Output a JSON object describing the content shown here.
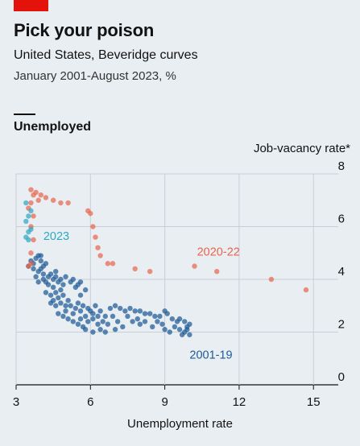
{
  "header": {
    "title": "Pick your poison",
    "subtitle": "United States, Beveridge curves",
    "dek": "January 2001-August 2023, %",
    "accent_color": "#e3120b"
  },
  "panel_label": "Unemployed",
  "chart_data": {
    "type": "scatter",
    "xlabel": "Unemployment rate",
    "ylabel": "Job-vacancy rate*",
    "xlim": [
      3,
      16
    ],
    "ylim": [
      0,
      8
    ],
    "xticks": [
      "3",
      "6",
      "9",
      "12",
      "15"
    ],
    "yticks": [
      "0",
      "2",
      "4",
      "6",
      "8"
    ],
    "y_axis_side": "right",
    "grid": "vertical",
    "series": [
      {
        "name": "2001-19",
        "color": "#1f5a96",
        "points": [
          [
            3.5,
            4.5
          ],
          [
            3.6,
            4.7
          ],
          [
            3.7,
            4.6
          ],
          [
            3.8,
            4.8
          ],
          [
            3.9,
            4.9
          ],
          [
            4.0,
            4.7
          ],
          [
            4.1,
            4.5
          ],
          [
            4.2,
            4.6
          ],
          [
            4.0,
            4.9
          ],
          [
            3.7,
            4.4
          ],
          [
            3.9,
            4.3
          ],
          [
            4.1,
            4.2
          ],
          [
            4.3,
            4.1
          ],
          [
            4.5,
            4.0
          ],
          [
            4.4,
            4.2
          ],
          [
            4.6,
            4.1
          ],
          [
            4.8,
            4.0
          ],
          [
            5.0,
            4.1
          ],
          [
            5.2,
            3.9
          ],
          [
            4.9,
            3.8
          ],
          [
            4.7,
            3.9
          ],
          [
            5.3,
            4.0
          ],
          [
            5.5,
            3.8
          ],
          [
            5.6,
            3.9
          ],
          [
            5.4,
            3.7
          ],
          [
            5.8,
            3.6
          ],
          [
            4.1,
            4.0
          ],
          [
            4.3,
            3.8
          ],
          [
            4.5,
            3.7
          ],
          [
            4.6,
            3.5
          ],
          [
            4.4,
            3.4
          ],
          [
            4.2,
            3.5
          ],
          [
            4.7,
            3.3
          ],
          [
            4.9,
            3.4
          ],
          [
            5.1,
            3.2
          ],
          [
            5.0,
            3.0
          ],
          [
            4.8,
            3.1
          ],
          [
            5.2,
            3.0
          ],
          [
            5.5,
            3.1
          ],
          [
            5.4,
            2.9
          ],
          [
            5.6,
            2.8
          ],
          [
            5.7,
            3.0
          ],
          [
            5.9,
            2.9
          ],
          [
            6.0,
            2.8
          ],
          [
            6.2,
            3.0
          ],
          [
            6.1,
            2.7
          ],
          [
            5.8,
            2.6
          ],
          [
            5.3,
            2.7
          ],
          [
            5.0,
            2.8
          ],
          [
            4.6,
            3.0
          ],
          [
            4.4,
            3.1
          ],
          [
            4.7,
            2.7
          ],
          [
            4.9,
            2.6
          ],
          [
            5.1,
            2.5
          ],
          [
            5.3,
            2.4
          ],
          [
            5.5,
            2.3
          ],
          [
            5.7,
            2.2
          ],
          [
            5.9,
            2.4
          ],
          [
            6.1,
            2.5
          ],
          [
            6.3,
            2.3
          ],
          [
            6.5,
            2.4
          ],
          [
            6.6,
            2.6
          ],
          [
            6.8,
            2.9
          ],
          [
            7.0,
            3.0
          ],
          [
            7.2,
            2.9
          ],
          [
            7.4,
            2.8
          ],
          [
            7.6,
            2.9
          ],
          [
            7.8,
            2.8
          ],
          [
            8.0,
            2.8
          ],
          [
            8.2,
            2.7
          ],
          [
            8.4,
            2.7
          ],
          [
            8.6,
            2.6
          ],
          [
            8.8,
            2.6
          ],
          [
            9.0,
            2.8
          ],
          [
            9.1,
            2.7
          ],
          [
            9.3,
            2.5
          ],
          [
            9.5,
            2.4
          ],
          [
            9.6,
            2.5
          ],
          [
            9.8,
            2.4
          ],
          [
            9.9,
            2.2
          ],
          [
            10.0,
            2.3
          ],
          [
            9.8,
            2.0
          ],
          [
            9.6,
            2.1
          ],
          [
            9.4,
            2.2
          ],
          [
            9.2,
            2.0
          ],
          [
            9.0,
            2.1
          ],
          [
            8.9,
            2.3
          ],
          [
            8.5,
            2.2
          ],
          [
            8.2,
            2.4
          ],
          [
            8.0,
            2.3
          ],
          [
            7.7,
            2.4
          ],
          [
            7.3,
            2.2
          ],
          [
            7.0,
            2.1
          ],
          [
            6.7,
            2.3
          ],
          [
            6.4,
            2.1
          ],
          [
            6.1,
            2.0
          ],
          [
            5.8,
            2.1
          ],
          [
            6.6,
            2.0
          ],
          [
            7.1,
            2.4
          ],
          [
            7.9,
            2.5
          ],
          [
            8.7,
            2.4
          ],
          [
            9.7,
            1.9
          ],
          [
            10.0,
            1.9
          ],
          [
            9.9,
            2.1
          ],
          [
            6.9,
            2.6
          ],
          [
            7.5,
            2.6
          ],
          [
            6.3,
            2.6
          ],
          [
            5.6,
            2.5
          ],
          [
            4.5,
            3.2
          ],
          [
            3.9,
            3.9
          ],
          [
            4.2,
            3.9
          ],
          [
            4.8,
            3.6
          ],
          [
            5.6,
            3.4
          ],
          [
            6.4,
            2.8
          ],
          [
            4.6,
            4.3
          ],
          [
            4.0,
            4.4
          ],
          [
            3.8,
            4.1
          ]
        ]
      },
      {
        "name": "2020-22",
        "color": "#e8664d",
        "points": [
          [
            3.5,
            4.5
          ],
          [
            3.6,
            4.6
          ],
          [
            3.6,
            5.0
          ],
          [
            3.7,
            5.5
          ],
          [
            3.6,
            6.0
          ],
          [
            3.7,
            6.4
          ],
          [
            3.5,
            6.7
          ],
          [
            3.6,
            6.9
          ],
          [
            3.7,
            7.2
          ],
          [
            3.6,
            7.4
          ],
          [
            3.8,
            7.3
          ],
          [
            4.0,
            7.2
          ],
          [
            3.9,
            7.0
          ],
          [
            4.2,
            7.1
          ],
          [
            4.5,
            7.0
          ],
          [
            4.8,
            6.9
          ],
          [
            5.1,
            6.9
          ],
          [
            5.9,
            6.6
          ],
          [
            6.0,
            6.5
          ],
          [
            6.1,
            6.0
          ],
          [
            6.2,
            5.6
          ],
          [
            6.3,
            5.2
          ],
          [
            6.4,
            4.9
          ],
          [
            6.7,
            4.6
          ],
          [
            6.9,
            4.6
          ],
          [
            7.8,
            4.4
          ],
          [
            8.4,
            4.3
          ],
          [
            10.2,
            4.5
          ],
          [
            11.1,
            4.3
          ],
          [
            13.3,
            4.0
          ],
          [
            14.7,
            3.6
          ]
        ]
      },
      {
        "name": "2023",
        "color": "#2fa9c2",
        "points": [
          [
            3.4,
            5.6
          ],
          [
            3.5,
            5.8
          ],
          [
            3.6,
            5.9
          ],
          [
            3.4,
            6.2
          ],
          [
            3.5,
            6.4
          ],
          [
            3.6,
            6.6
          ],
          [
            3.4,
            6.9
          ],
          [
            3.5,
            5.5
          ]
        ]
      }
    ],
    "annotations": [
      {
        "text": "2023",
        "series": "2023",
        "at": [
          4.1,
          5.5
        ]
      },
      {
        "text": "2020-22",
        "series": "2020-22",
        "at": [
          10.3,
          4.9
        ]
      },
      {
        "text": "2001-19",
        "series": "2001-19",
        "at": [
          10.0,
          1.0
        ]
      }
    ]
  }
}
